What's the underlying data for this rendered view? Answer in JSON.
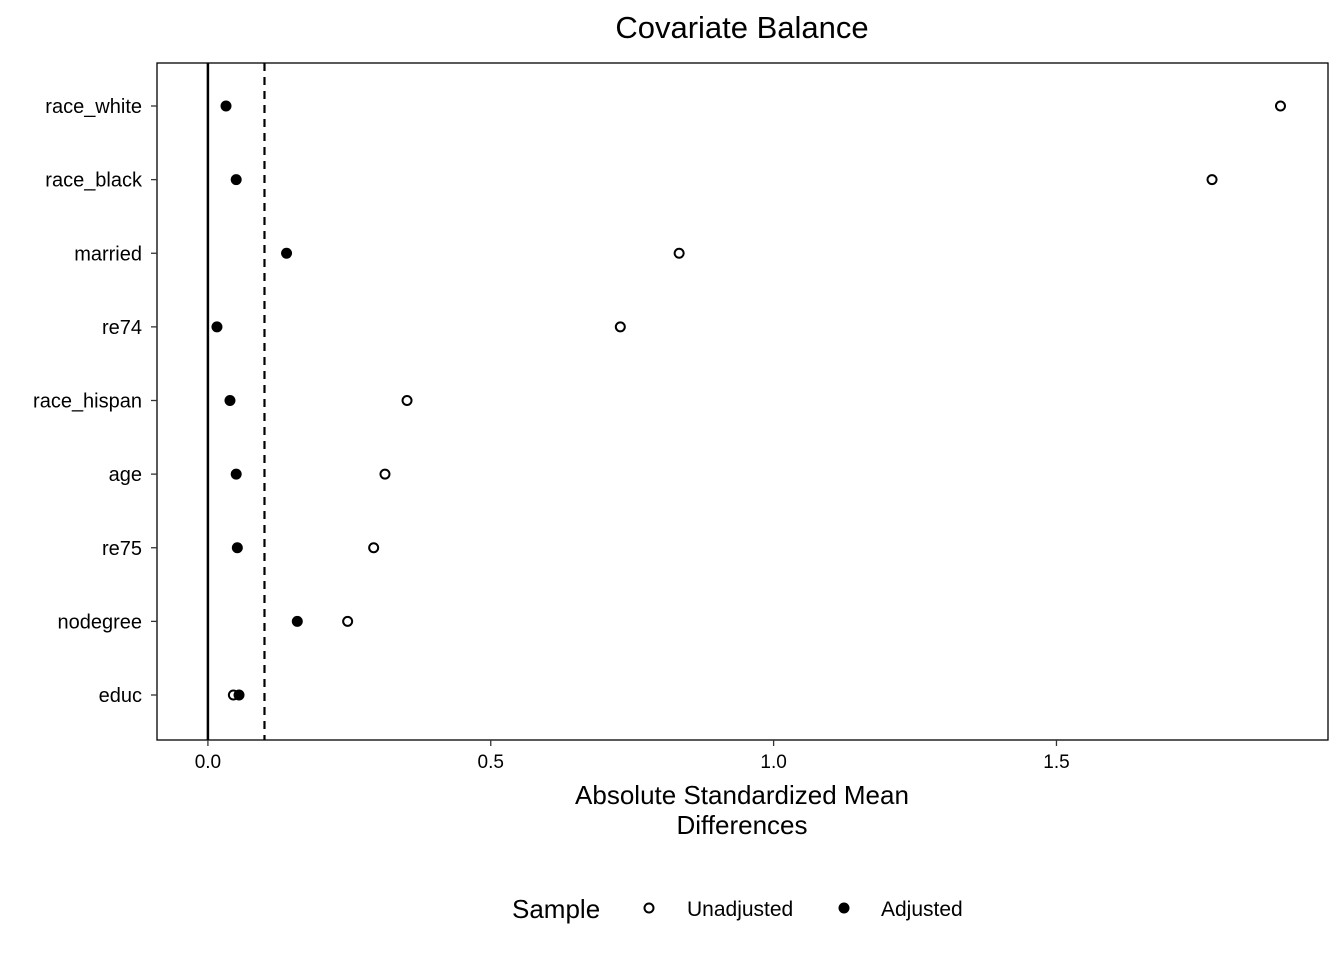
{
  "chart_data": {
    "type": "scatter",
    "title": "Covariate Balance",
    "xlabel": [
      "Absolute Standardized Mean",
      "Differences"
    ],
    "ylabel": "",
    "xlim": [
      -0.09,
      1.98
    ],
    "xticks": [
      0.0,
      0.5,
      1.0,
      1.5
    ],
    "xtick_labels": [
      "0.0",
      "0.5",
      "1.0",
      "1.5"
    ],
    "threshold": 0.1,
    "categories": [
      "race_white",
      "race_black",
      "married",
      "re74",
      "race_hispan",
      "age",
      "re75",
      "nodegree",
      "educ"
    ],
    "series": [
      {
        "name": "Unadjusted",
        "marker": "open-circle",
        "values": [
          1.896,
          1.775,
          0.833,
          0.729,
          0.352,
          0.313,
          0.293,
          0.247,
          0.045
        ]
      },
      {
        "name": "Adjusted",
        "marker": "filled-circle",
        "values": [
          0.032,
          0.05,
          0.139,
          0.016,
          0.039,
          0.05,
          0.052,
          0.158,
          0.055
        ]
      }
    ],
    "legend": {
      "title": "Sample",
      "position": "bottom",
      "labels": [
        "Unadjusted",
        "Adjusted"
      ]
    },
    "grid": false
  }
}
